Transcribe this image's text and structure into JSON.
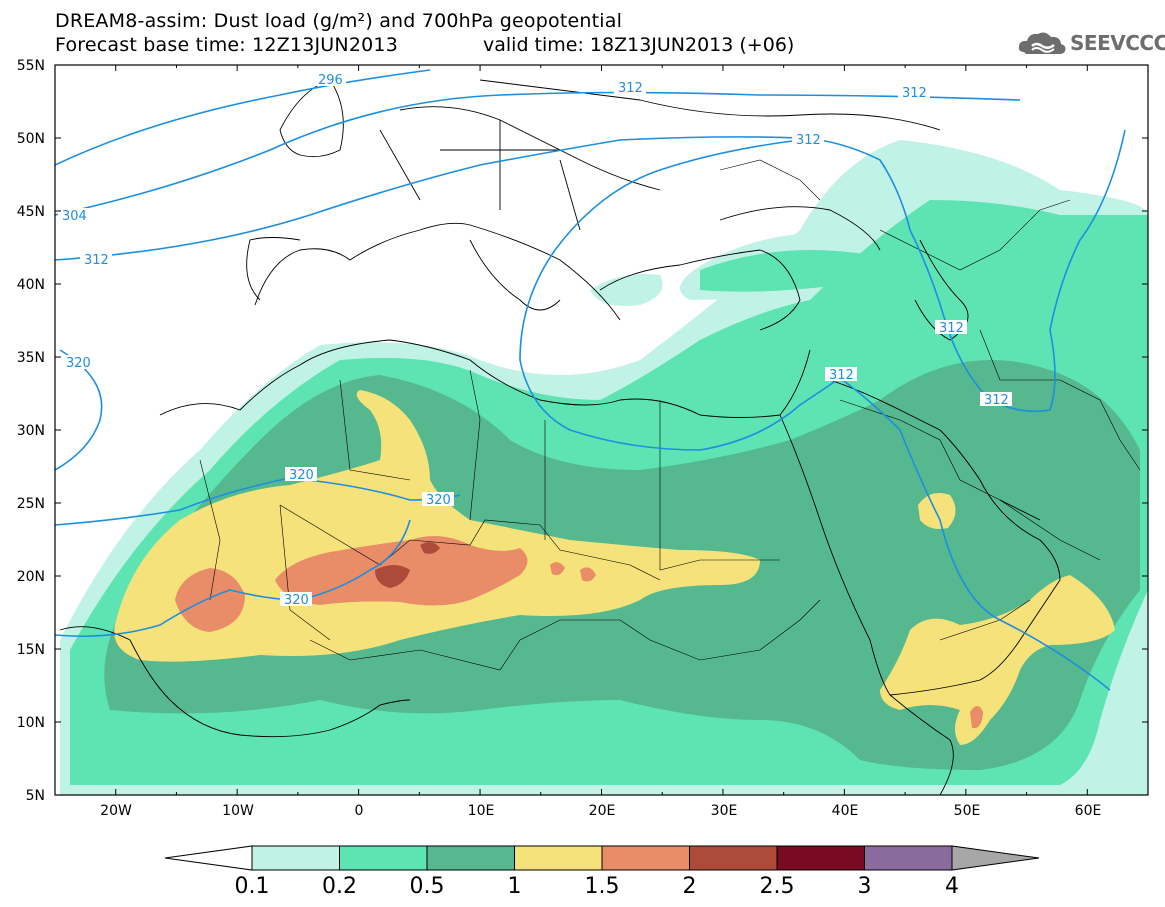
{
  "header": {
    "title_line1": "DREAM8-assim: Dust load (g/m²) and 700hPa geopotential",
    "title_line2": "Forecast base time: 12Z13JUN2013",
    "valid_time": "valid time: 18Z13JUN2013 (+06)",
    "logo_text": "SEEVCCC"
  },
  "map": {
    "lon_range": [
      -25,
      65
    ],
    "lat_range": [
      5,
      55
    ],
    "lat_labels": [
      "55N",
      "50N",
      "45N",
      "40N",
      "35N",
      "30N",
      "25N",
      "20N",
      "15N",
      "10N",
      "5N"
    ],
    "lon_labels": [
      "20W",
      "10W",
      "0",
      "10E",
      "20E",
      "30E",
      "40E",
      "50E",
      "60E"
    ],
    "contour_labels": [
      "296",
      "312",
      "312",
      "312",
      "304",
      "312",
      "320",
      "320",
      "320",
      "320",
      "312",
      "312",
      "312"
    ],
    "contour_color": "#1d8fe0"
  },
  "colorbar": {
    "labels": [
      "0.1",
      "0.2",
      "0.5",
      "1",
      "1.5",
      "2",
      "2.5",
      "3",
      "4"
    ],
    "colors": [
      "#c0f2e6",
      "#5ee3b3",
      "#55b88e",
      "#f6e27a",
      "#e98c68",
      "#ad4a3a",
      "#7a0a22",
      "#8b6a9e"
    ],
    "under_color": "#ffffff",
    "over_color": "#a7a7a7"
  }
}
